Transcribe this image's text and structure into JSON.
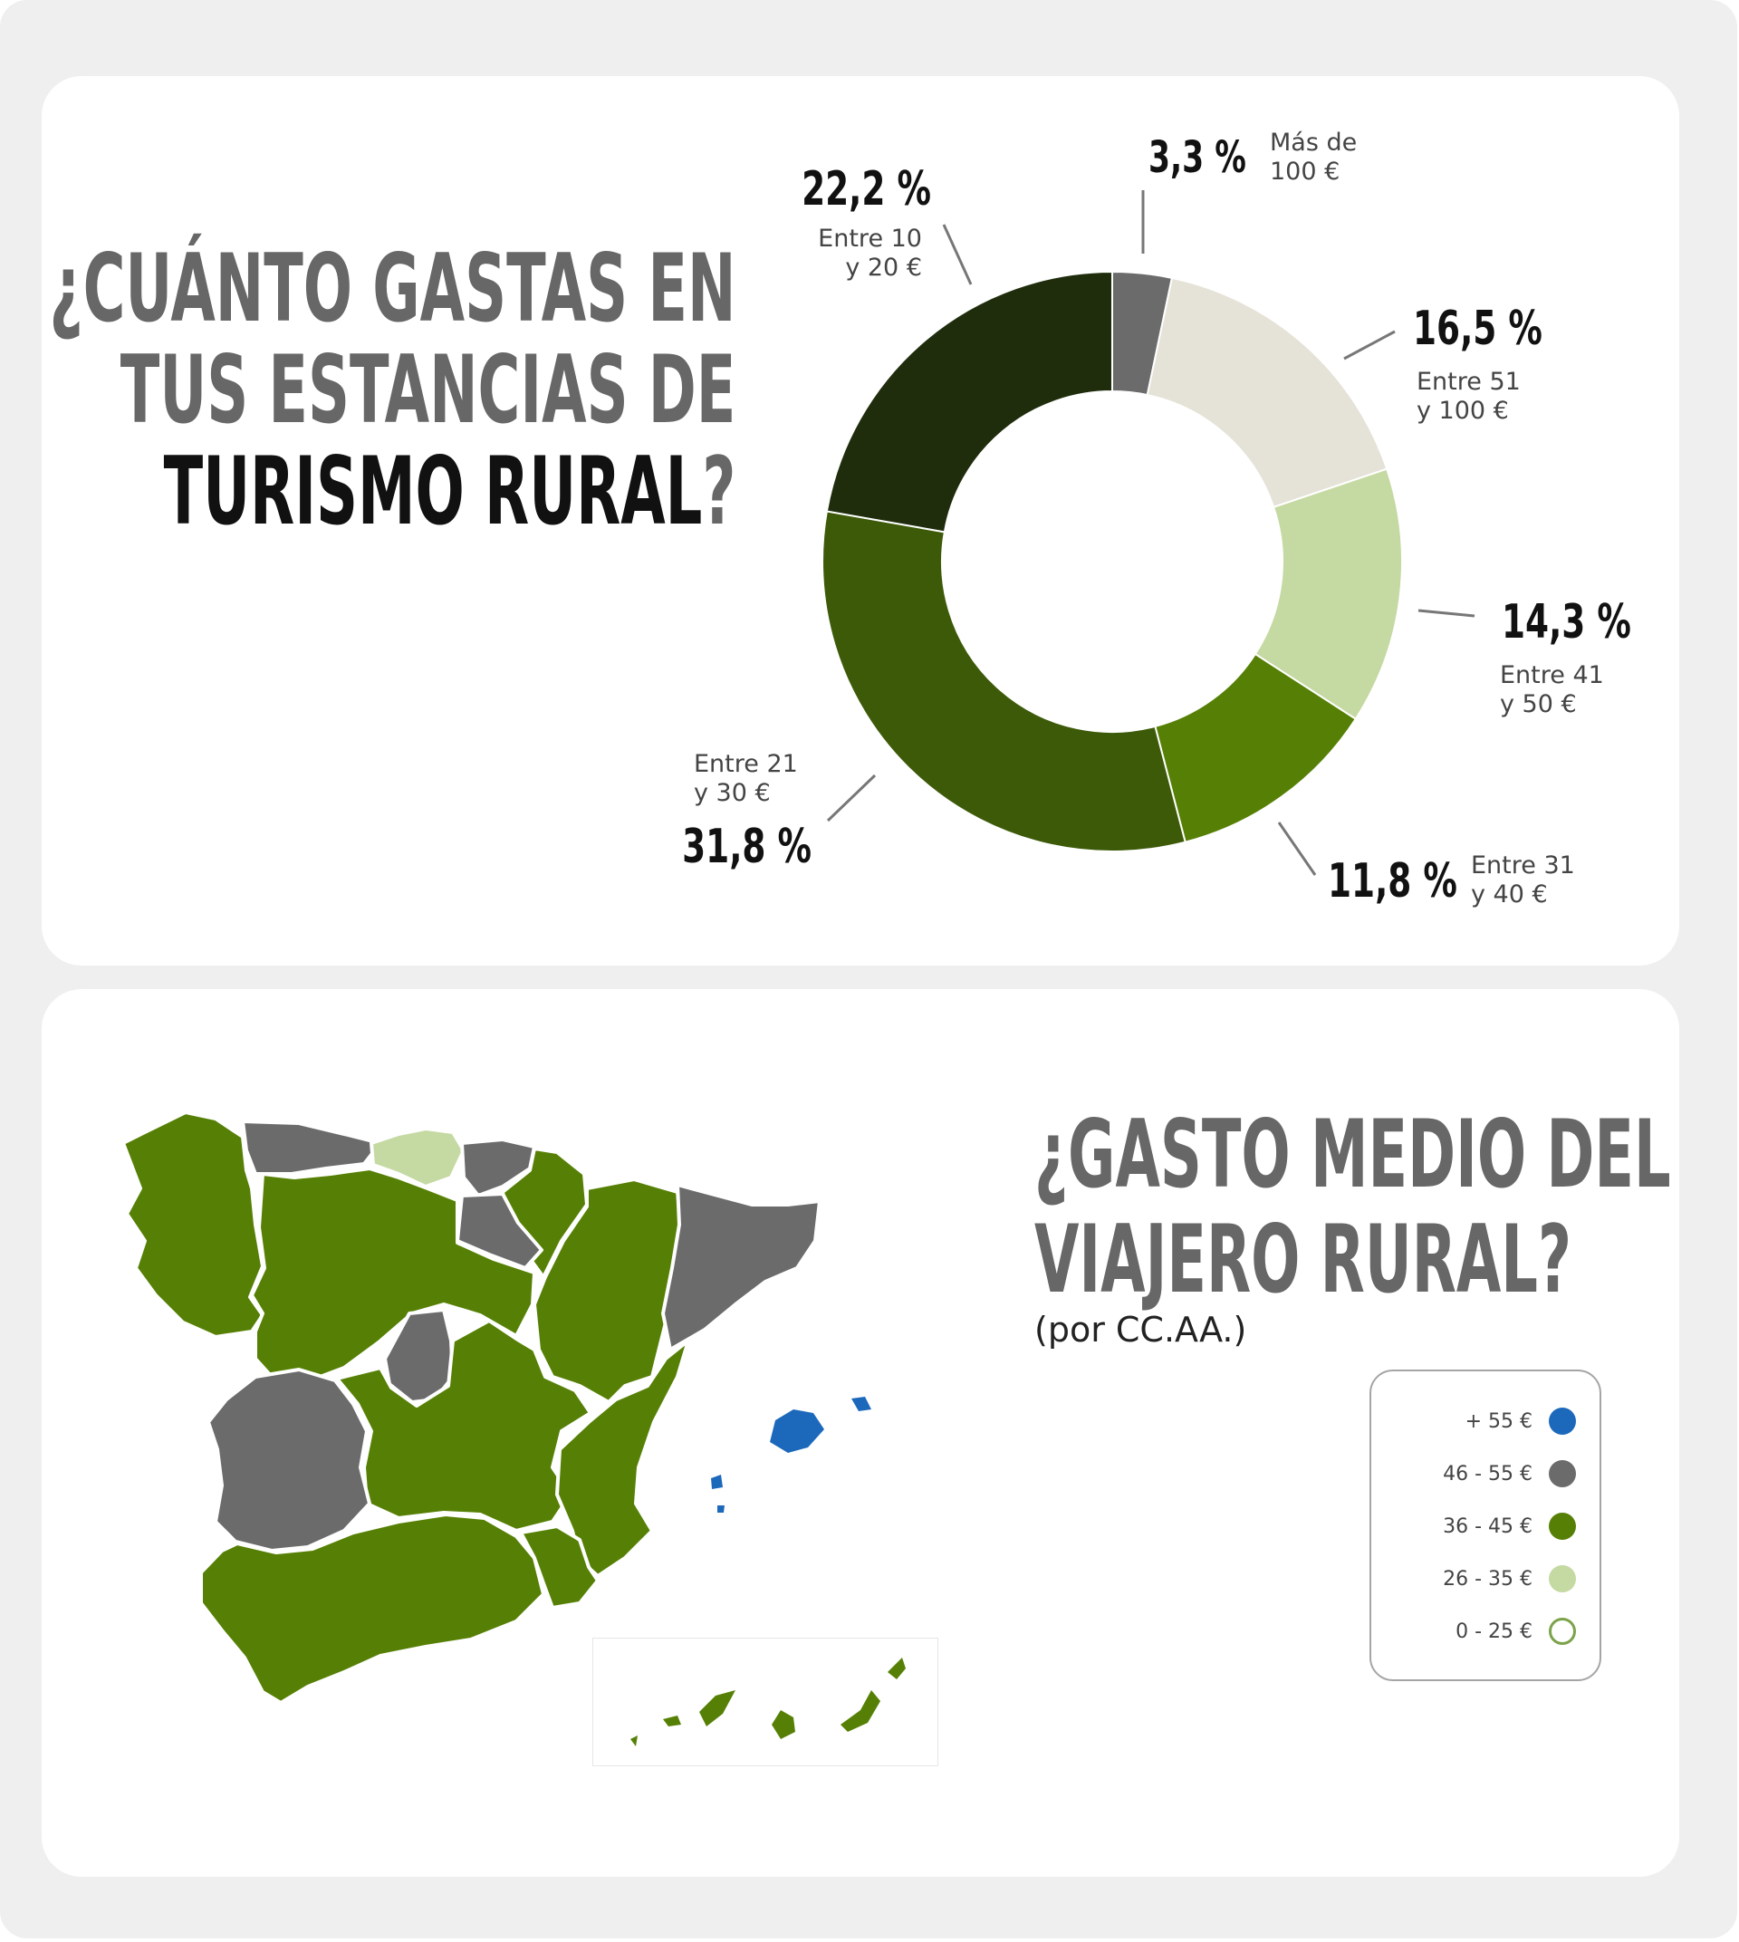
{
  "colors": {
    "dark_green": "#1f2d0d",
    "forest_green": "#3d5a09",
    "mid_green": "#568005",
    "light_green": "#c5d9a2",
    "beige": "#e5e2d7",
    "grey": "#6b6b6b",
    "blue": "#1c69bc",
    "white": "#ffffff"
  },
  "top_panel": {
    "question_line1": "¿Cuánto gastas en",
    "question_line2": "tus estancias de",
    "question_line3_bold": "turismo rural",
    "question_line3_mark": "?"
  },
  "chart_data": {
    "type": "pie",
    "variant": "donut",
    "slices": [
      {
        "value": 3.3,
        "pct_label": "3,3 %",
        "label_line1": "Más de",
        "label_line2": "100 €",
        "color": "#6b6b6b"
      },
      {
        "value": 16.5,
        "pct_label": "16,5 %",
        "label_line1": "Entre 51",
        "label_line2": "y 100 €",
        "color": "#e5e2d7"
      },
      {
        "value": 14.3,
        "pct_label": "14,3 %",
        "label_line1": "Entre 41",
        "label_line2": "y 50 €",
        "color": "#c5d9a2"
      },
      {
        "value": 11.8,
        "pct_label": "11,8 %",
        "label_line1": "Entre 31",
        "label_line2": "y 40 €",
        "color": "#568005"
      },
      {
        "value": 31.8,
        "pct_label": "31,8 %",
        "label_line1": "Entre 21",
        "label_line2": "y 30 €",
        "color": "#3d5a09"
      },
      {
        "value": 22.2,
        "pct_label": "22,2 %",
        "label_line1": "Entre 10",
        "label_line2": "y 20 €",
        "color": "#1f2d0d"
      }
    ]
  },
  "bottom_panel": {
    "question_line1": "¿Gasto medio del",
    "question_line2": "viajero rural?",
    "subtitle": "(por CC.AA.)",
    "legend": [
      {
        "label": "+ 55 €",
        "color": "#1c69bc",
        "outline": false
      },
      {
        "label": "46 - 55 €",
        "color": "#6b6b6b",
        "outline": false
      },
      {
        "label": "36 - 45 €",
        "color": "#568005",
        "outline": false
      },
      {
        "label": "26 - 35 €",
        "color": "#c5d9a2",
        "outline": false
      },
      {
        "label": "0 - 25 €",
        "color": "#ffffff",
        "outline": true
      }
    ]
  },
  "map_regions": [
    {
      "name": "galicia",
      "color": "#568005"
    },
    {
      "name": "asturias",
      "color": "#6b6b6b"
    },
    {
      "name": "cantabria",
      "color": "#c5d9a2"
    },
    {
      "name": "pais-vasco",
      "color": "#6b6b6b"
    },
    {
      "name": "navarra",
      "color": "#568005"
    },
    {
      "name": "la-rioja",
      "color": "#6b6b6b"
    },
    {
      "name": "aragon",
      "color": "#568005"
    },
    {
      "name": "cataluna",
      "color": "#6b6b6b"
    },
    {
      "name": "castilla-y-leon",
      "color": "#568005"
    },
    {
      "name": "madrid",
      "color": "#6b6b6b"
    },
    {
      "name": "castilla-la-mancha",
      "color": "#568005"
    },
    {
      "name": "valencia",
      "color": "#568005"
    },
    {
      "name": "extremadura",
      "color": "#6b6b6b"
    },
    {
      "name": "andalucia",
      "color": "#568005"
    },
    {
      "name": "murcia",
      "color": "#568005"
    },
    {
      "name": "baleares",
      "color": "#1c69bc"
    },
    {
      "name": "canarias",
      "color": "#568005"
    }
  ]
}
